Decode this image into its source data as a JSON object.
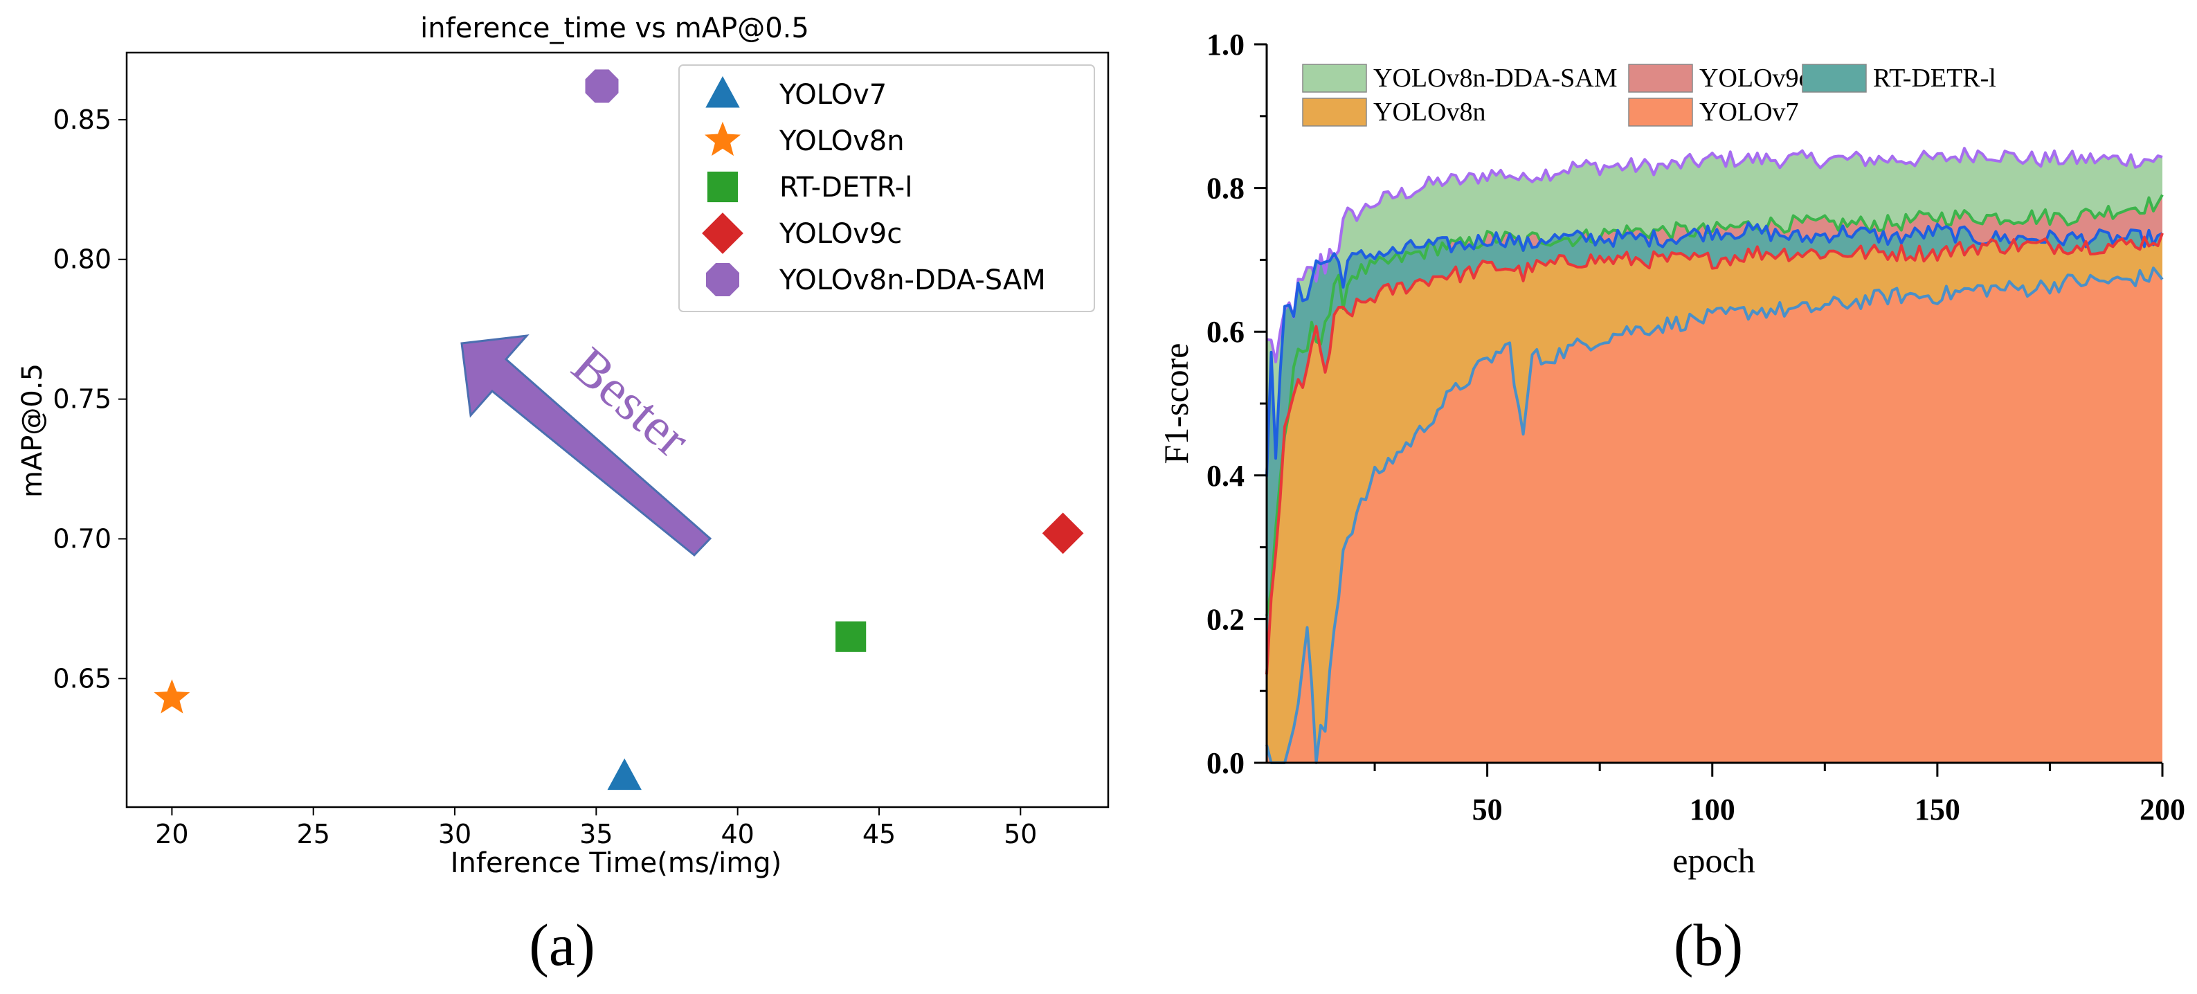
{
  "panel_labels": {
    "a": "(a)",
    "b": "(b)"
  },
  "annotation": {
    "text": "Bester",
    "color": "#9467bd"
  },
  "chart_data": [
    {
      "type": "scatter",
      "title": "inference_time vs mAP@0.5",
      "xlabel": "Inference Time(ms/img)",
      "ylabel": "mAP@0.5",
      "xlim": [
        18.4,
        53.1
      ],
      "ylim": [
        0.604,
        0.874
      ],
      "xticks": [
        20,
        25,
        30,
        35,
        40,
        45,
        50
      ],
      "yticks": [
        0.65,
        0.7,
        0.75,
        0.8,
        0.85
      ],
      "ytick_labels": [
        "0.65",
        "0.70",
        "0.75",
        "0.80",
        "0.85"
      ],
      "legend_position": "top-right",
      "series": [
        {
          "name": "YOLOv7",
          "x": 36.0,
          "y": 0.615,
          "marker": "triangle",
          "color": "#1f77b4"
        },
        {
          "name": "YOLOv8n",
          "x": 20.0,
          "y": 0.643,
          "marker": "star",
          "color": "#ff7f0e"
        },
        {
          "name": "RT-DETR-l",
          "x": 44.0,
          "y": 0.665,
          "marker": "square",
          "color": "#2ca02c"
        },
        {
          "name": "YOLOv9c",
          "x": 51.5,
          "y": 0.702,
          "marker": "diamond",
          "color": "#d62728"
        },
        {
          "name": "YOLOv8n-DDA-SAM",
          "x": 35.2,
          "y": 0.862,
          "marker": "octagon",
          "color": "#9467bd"
        }
      ]
    },
    {
      "type": "area",
      "xlabel": "epoch",
      "ylabel": "F1-score",
      "xlim": [
        1,
        200
      ],
      "ylim": [
        0.0,
        1.0
      ],
      "xticks": [
        50,
        100,
        150,
        200
      ],
      "yticks": [
        0.0,
        0.2,
        0.4,
        0.6,
        0.8,
        1.0
      ],
      "ytick_labels": [
        "0.0",
        "0.2",
        "0.4",
        "0.6",
        "0.8",
        "1.0"
      ],
      "legend_position": "top",
      "x_anchor": [
        1,
        2,
        3,
        4,
        5,
        6,
        8,
        10,
        12,
        14,
        16,
        18,
        20,
        25,
        30,
        35,
        40,
        45,
        50,
        55,
        58,
        60,
        62,
        70,
        80,
        90,
        100,
        110,
        120,
        130,
        140,
        150,
        160,
        170,
        180,
        190,
        200
      ],
      "series": [
        {
          "name": "YOLOv8n-DDA-SAM",
          "fill": "#a5d2a4",
          "line": "#a66cf0",
          "values": [
            0.58,
            0.6,
            0.55,
            0.57,
            0.62,
            0.63,
            0.65,
            0.67,
            0.68,
            0.7,
            0.72,
            0.74,
            0.76,
            0.78,
            0.79,
            0.8,
            0.81,
            0.81,
            0.82,
            0.82,
            0.81,
            0.82,
            0.82,
            0.83,
            0.83,
            0.83,
            0.84,
            0.84,
            0.84,
            0.84,
            0.84,
            0.84,
            0.85,
            0.84,
            0.84,
            0.84,
            0.84
          ]
        },
        {
          "name": "YOLOv9c",
          "fill": "#de8a86",
          "line": "#3cb44b",
          "values": [
            0.2,
            0.25,
            0.33,
            0.4,
            0.45,
            0.5,
            0.55,
            0.58,
            0.6,
            0.62,
            0.64,
            0.66,
            0.68,
            0.69,
            0.7,
            0.71,
            0.72,
            0.72,
            0.73,
            0.73,
            0.72,
            0.73,
            0.73,
            0.73,
            0.74,
            0.74,
            0.74,
            0.75,
            0.75,
            0.75,
            0.75,
            0.76,
            0.76,
            0.76,
            0.76,
            0.77,
            0.78
          ]
        },
        {
          "name": "RT-DETR-l",
          "fill": "#5ea8a2",
          "line": "#1f5fe0",
          "values": [
            0.38,
            0.59,
            0.45,
            0.56,
            0.61,
            0.62,
            0.64,
            0.67,
            0.69,
            0.7,
            0.7,
            0.69,
            0.7,
            0.71,
            0.71,
            0.72,
            0.72,
            0.72,
            0.73,
            0.73,
            0.72,
            0.72,
            0.73,
            0.73,
            0.73,
            0.73,
            0.74,
            0.74,
            0.73,
            0.74,
            0.73,
            0.74,
            0.73,
            0.73,
            0.73,
            0.73,
            0.73
          ]
        },
        {
          "name": "YOLOv8n",
          "fill": "#e8a84c",
          "line": "#e8383a",
          "values": [
            0.1,
            0.22,
            0.3,
            0.38,
            0.44,
            0.48,
            0.52,
            0.56,
            0.58,
            0.55,
            0.6,
            0.62,
            0.63,
            0.65,
            0.66,
            0.67,
            0.68,
            0.68,
            0.69,
            0.69,
            0.68,
            0.69,
            0.69,
            0.7,
            0.7,
            0.7,
            0.7,
            0.71,
            0.71,
            0.71,
            0.71,
            0.71,
            0.72,
            0.72,
            0.72,
            0.72,
            0.73
          ]
        },
        {
          "name": "YOLOv7",
          "fill": "#f99066",
          "line": "#4a90c8",
          "values": [
            0.0,
            0.0,
            0.0,
            0.0,
            0.01,
            0.0,
            0.1,
            0.18,
            0.0,
            0.05,
            0.2,
            0.3,
            0.33,
            0.4,
            0.43,
            0.46,
            0.5,
            0.53,
            0.56,
            0.58,
            0.45,
            0.57,
            0.56,
            0.58,
            0.6,
            0.61,
            0.62,
            0.63,
            0.63,
            0.64,
            0.65,
            0.65,
            0.66,
            0.66,
            0.67,
            0.67,
            0.68
          ]
        }
      ],
      "legend_order": [
        "YOLOv8n-DDA-SAM",
        "YOLOv9c",
        "RT-DETR-l",
        "YOLOv8n",
        "YOLOv7"
      ]
    }
  ]
}
